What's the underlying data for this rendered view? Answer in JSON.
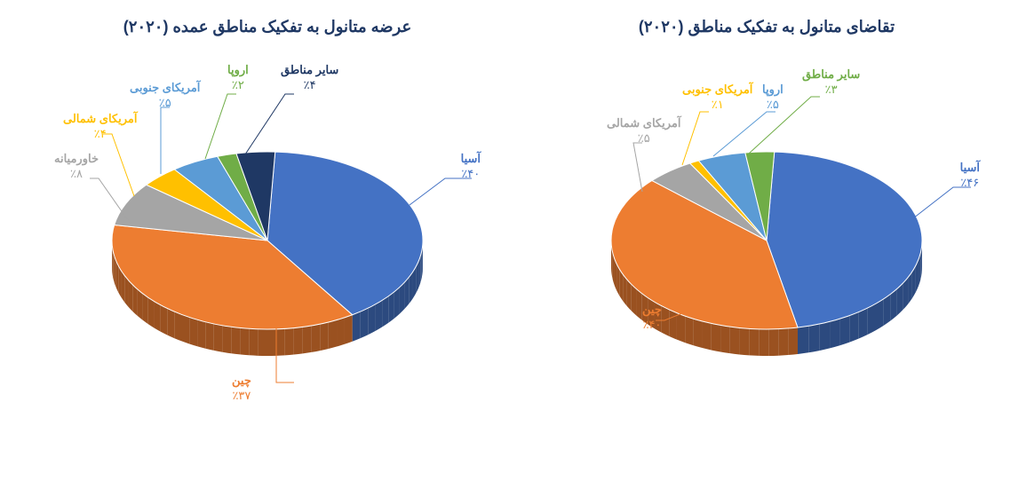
{
  "background_color": "#ffffff",
  "title_color": "#1f3864",
  "title_fontsize": 18,
  "label_fontsize": 13,
  "supply_chart": {
    "title": "عرضه متانول به تفکیک مناطق عمده (۲۰۲۰)",
    "type": "pie-3d",
    "slices": [
      {
        "name": "آسیا",
        "pct": "٪۴۰",
        "value": 40,
        "color": "#4472c4"
      },
      {
        "name": "چین",
        "pct": "٪۳۷",
        "value": 37,
        "color": "#ed7d31"
      },
      {
        "name": "خاورمیانه",
        "pct": "٪۸",
        "value": 8,
        "color": "#a5a5a5"
      },
      {
        "name": "آمریکای شمالی",
        "pct": "٪۴",
        "value": 4,
        "color": "#ffc000"
      },
      {
        "name": "آمریکای جنوبی",
        "pct": "٪۵",
        "value": 5,
        "color": "#5b9bd5"
      },
      {
        "name": "اروپا",
        "pct": "٪۲",
        "value": 2,
        "color": "#70ad47"
      },
      {
        "name": "سایر مناطق",
        "pct": "٪۴",
        "value": 4,
        "color": "#1f3864"
      }
    ],
    "label_colors": {
      "آسیا": "#4472c4",
      "چین": "#ed7d31",
      "خاورمیانه": "#a5a5a5",
      "آمریکای شمالی": "#ffc000",
      "آمریکای جنوبی": "#5b9bd5",
      "اروپا": "#70ad47",
      "سایر مناطق": "#1f3864"
    }
  },
  "demand_chart": {
    "title": "تقاضای متانول به تفکیک مناطق (۲۰۲۰)",
    "type": "pie-3d",
    "slices": [
      {
        "name": "آسیا",
        "pct": "٪۴۶",
        "value": 46,
        "color": "#4472c4"
      },
      {
        "name": "چین",
        "pct": "٪۴۰",
        "value": 40,
        "color": "#ed7d31"
      },
      {
        "name": "آمریکای شمالی",
        "pct": "٪۵",
        "value": 5,
        "color": "#a5a5a5"
      },
      {
        "name": "آمریکای جنوبی",
        "pct": "٪۱",
        "value": 1,
        "color": "#ffc000"
      },
      {
        "name": "اروپا",
        "pct": "٪۵",
        "value": 5,
        "color": "#5b9bd5"
      },
      {
        "name": "سایر مناطق",
        "pct": "٪۳",
        "value": 3,
        "color": "#70ad47"
      }
    ],
    "label_colors": {
      "آسیا": "#4472c4",
      "چین": "#ed7d31",
      "آمریکای شمالی": "#a5a5a5",
      "آمریکای جنوبی": "#ffc000",
      "اروپا": "#5b9bd5",
      "سایر مناطق": "#70ad47"
    }
  }
}
